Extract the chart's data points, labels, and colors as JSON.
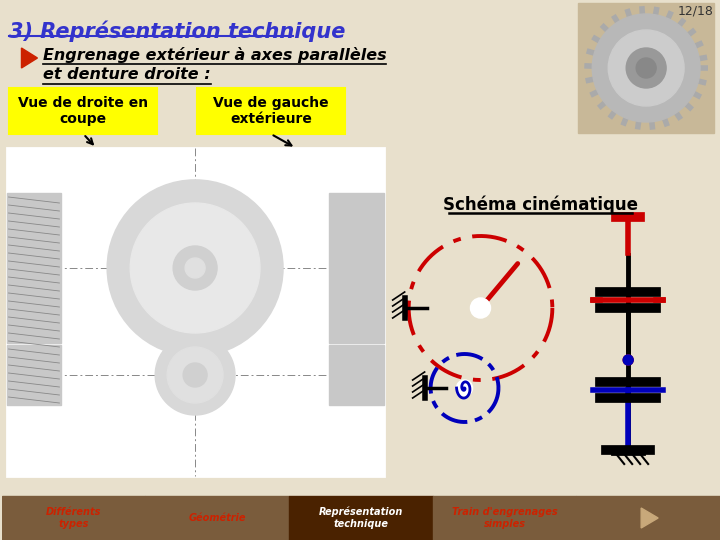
{
  "background_color": "#e8e0cc",
  "title": "3) Représentation technique",
  "title_color": "#3333cc",
  "page_num": "12/18",
  "bullet_text_line1": "Engrenage extérieur à axes parallèles",
  "bullet_text_line2": "et denture droite :",
  "label1": "Vue de droite en\ncoupe",
  "label2": "Vue de gauche\nextérieure",
  "schema_title": "Schéma cinématique",
  "footer_tabs": [
    "Différents\ntypes",
    "Géométrie",
    "Représentation\ntechnique",
    "Train d'engrenages\nsimples"
  ],
  "footer_bg": "#7a5c3c",
  "footer_active_bg": "#4a2200",
  "footer_active_idx": 2,
  "yellow_box_color": "#ffff00",
  "red_color": "#cc0000",
  "blue_color": "#0000bb",
  "black_color": "#000000"
}
